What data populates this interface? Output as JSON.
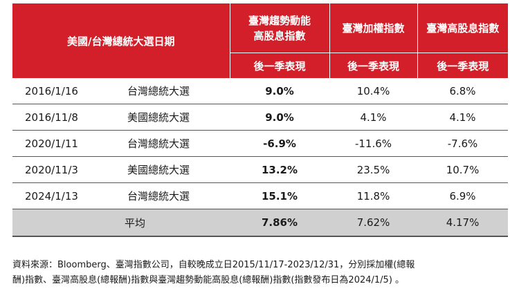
{
  "header": {
    "date_col": "美國/台灣總統大選日期",
    "col1_line1": "臺灣趨勢動能",
    "col1_line2": "高股息指數",
    "col2": "臺灣加權指數",
    "col3": "臺灣高股息指數",
    "sub_label": "後一季表現"
  },
  "rows": [
    {
      "date": "2016/1/16",
      "event": "台灣總統大選",
      "v1": "9.0%",
      "v2": "10.4%",
      "v3": "6.8%"
    },
    {
      "date": "2016/11/8",
      "event": "美國總統大選",
      "v1": "9.0%",
      "v2": "4.1%",
      "v3": "4.1%"
    },
    {
      "date": "2020/1/11",
      "event": "台灣總統大選",
      "v1": "-6.9%",
      "v2": "-11.6%",
      "v3": "-7.6%"
    },
    {
      "date": "2020/11/3",
      "event": "美國總統大選",
      "v1": "13.2%",
      "v2": "23.5%",
      "v3": "10.7%"
    },
    {
      "date": "2024/1/13",
      "event": "台灣總統大選",
      "v1": "15.1%",
      "v2": "11.8%",
      "v3": "6.9%"
    }
  ],
  "average": {
    "label": "平均",
    "v1": "7.86%",
    "v2": "7.62%",
    "v3": "4.17%"
  },
  "footnote": {
    "line1": "資料來源：Bloomberg、臺灣指數公司，自較晚成立日2015/11/17-2023/12/31，分別採加權(總報",
    "line2": "酬)指數、臺灣高股息(總報酬)指數與臺灣趨勢動能高股息(總報酬)指數(指數發布日為2024/1/5) 。"
  },
  "colors": {
    "header_bg": "#d21f2a",
    "average_bg": "#d0d0d0"
  }
}
